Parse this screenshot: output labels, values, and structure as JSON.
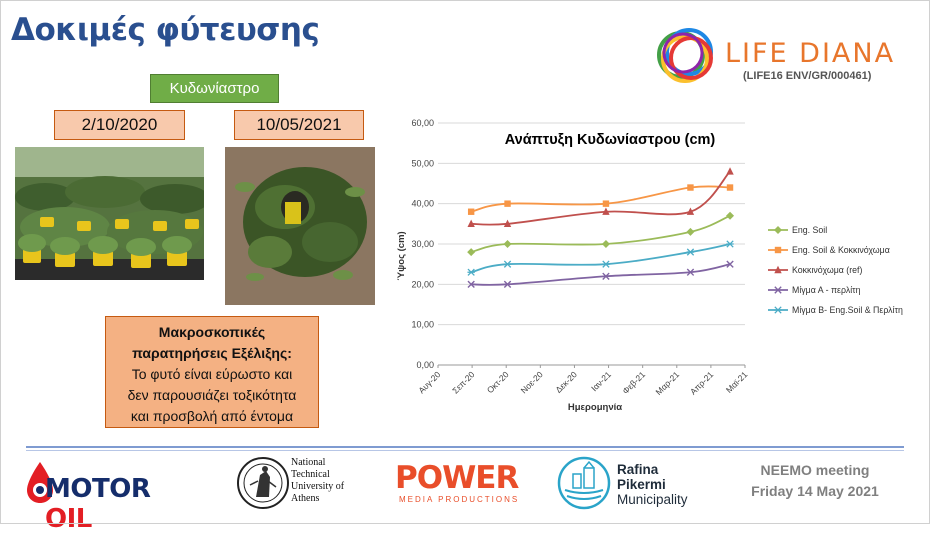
{
  "slide": {
    "title": "Δοκιμές φύτευσης",
    "plant_label": "Κυδωνίαστρο",
    "date_left": "2/10/2020",
    "date_right": "10/05/2021",
    "observation": {
      "line1": "Μακροσκοπικές",
      "line2": "παρατηρήσεις Εξέλιξης:",
      "line3": "Το φυτό είναι εύρωστο και",
      "line4": "δεν παρουσιάζει τοξικότητα",
      "line5": "και προσβολή από έντομα"
    }
  },
  "logos": {
    "life_name": "LIFE DIANA",
    "life_code": "(LIFE16 ENV/GR/000461)",
    "motor_oil_part1": "MOTOR",
    "motor_oil_part2": "OIL",
    "ntua_line1": "National",
    "ntua_line2": "Technical",
    "ntua_line3": "University of",
    "ntua_line4": "Athens",
    "power_name": "POWER",
    "power_sub": "MEDIA PRODUCTIONS",
    "rafina_line1": "Rafina",
    "rafina_line2": "Pikermi",
    "rafina_line3": "Municipality"
  },
  "meeting": {
    "line1": "NEEMO meeting",
    "line2": "Friday 14 May 2021"
  },
  "colors": {
    "title_blue": "#2a4f8f",
    "green_label": "#70ad47",
    "salmon_box": "#f8c9ac",
    "orange_box": "#f4b183",
    "life_orange": "#e8762c",
    "motor_blue": "#152d6b",
    "motor_red": "#e31e24",
    "power_orange": "#e94e2a"
  },
  "chart_data": {
    "type": "line",
    "title": "Ανάπτυξη Κυδωνίαστρου (cm)",
    "xlabel": "Ημερομηνία",
    "ylabel": "Ύψος (cm)",
    "x_ticks": [
      "Αυγ-20",
      "Σεπ-20",
      "Οκτ-20",
      "Νοε-20",
      "Δεκ-20",
      "Ιαν-21",
      "Φεβ-21",
      "Μαρ-21",
      "Απρ-21",
      "Μαϊ-21"
    ],
    "y_ticks": [
      "0,00",
      "10,00",
      "20,00",
      "30,00",
      "40,00",
      "50,00",
      "60,00"
    ],
    "ylim": [
      0,
      60
    ],
    "xlim": [
      "2020-08-01",
      "2021-05-15"
    ],
    "grid": true,
    "legend_position": "right",
    "x": [
      "2020-09-01",
      "2020-10-05",
      "2021-01-05",
      "2021-03-25",
      "2021-05-01"
    ],
    "series": [
      {
        "name": "Eng. Soil",
        "values": [
          28,
          30,
          30,
          33,
          37
        ],
        "color": "#9bbb59",
        "marker": "diamond"
      },
      {
        "name": "Eng. Soil & Κοκκινόχωμα",
        "values": [
          38,
          40,
          40,
          44,
          44
        ],
        "color": "#f79646",
        "marker": "square"
      },
      {
        "name": "Κοκκινόχωμα (ref)",
        "values": [
          35,
          35,
          38,
          38,
          48
        ],
        "color": "#c0504d",
        "marker": "triangle"
      },
      {
        "name": "Μίγμα Α - περλίτη",
        "values": [
          20,
          20,
          22,
          23,
          25
        ],
        "color": "#8064a2",
        "marker": "x"
      },
      {
        "name": "Μίγμα Β- Eng.Soil & Περλίτη",
        "values": [
          23,
          25,
          25,
          28,
          30
        ],
        "color": "#4bacc6",
        "marker": "star"
      }
    ]
  }
}
